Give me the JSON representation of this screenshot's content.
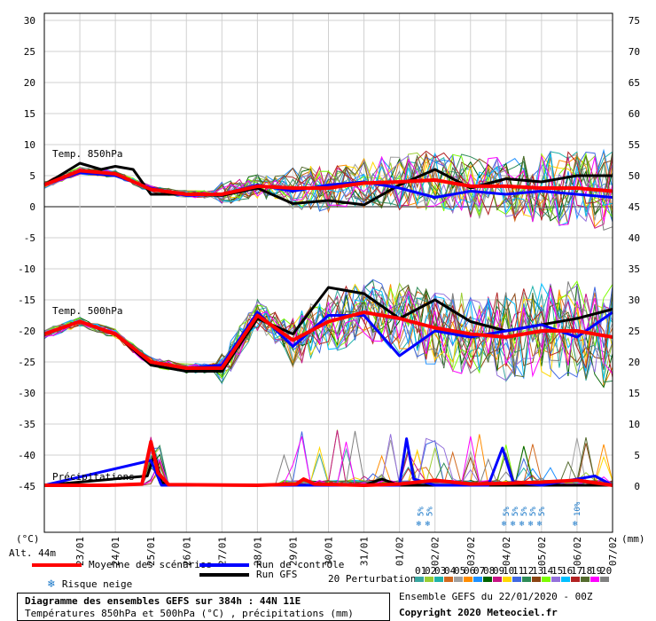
{
  "chart_data": {
    "type": "line",
    "days": [
      "23/01",
      "24/01",
      "25/01",
      "26/01",
      "27/01",
      "28/01",
      "29/01",
      "30/01",
      "31/01",
      "01/02",
      "02/02",
      "03/02",
      "04/02",
      "05/02",
      "06/02",
      "07/02"
    ],
    "left_axis_ticks": [
      30,
      25,
      20,
      15,
      10,
      5,
      0,
      -5,
      -10,
      -15,
      -20,
      -25,
      -30,
      -35,
      -40,
      -45
    ],
    "right_axis_ticks": [
      75,
      70,
      65,
      60,
      55,
      50,
      45,
      40,
      35,
      30,
      25,
      20,
      15,
      10,
      5,
      0
    ],
    "left_axis_unit": "(°C)",
    "right_axis_unit": "(mm)",
    "altitude_label": "Alt. 44m",
    "label_t850": "Temp. 850hPa",
    "label_t500": "Temp. 500hPa",
    "label_precip": "Précipitations",
    "snow_risk": [
      {
        "day": 10.6,
        "label": "5%"
      },
      {
        "day": 10.85,
        "label": "5%"
      },
      {
        "day": 13.0,
        "label": "5%"
      },
      {
        "day": 13.25,
        "label": "5%"
      },
      {
        "day": 13.5,
        "label": "5%"
      },
      {
        "day": 13.75,
        "label": "5%"
      },
      {
        "day": 14.0,
        "label": "5%"
      },
      {
        "day": 15.0,
        "label": "10%"
      }
    ],
    "series": [
      {
        "name": "Moyenne des scénarios",
        "color": "#ff0000",
        "t850": [
          [
            0,
            3.5
          ],
          [
            1,
            5.8
          ],
          [
            2,
            5.3
          ],
          [
            3,
            2.8
          ],
          [
            4,
            2.0
          ],
          [
            5,
            2.0
          ],
          [
            6,
            3.3
          ],
          [
            7,
            3.0
          ],
          [
            8,
            3.0
          ],
          [
            9,
            3.8
          ],
          [
            10,
            4.0
          ],
          [
            11,
            4.3
          ],
          [
            12,
            3.3
          ],
          [
            13,
            3.3
          ],
          [
            14,
            3.0
          ],
          [
            15,
            3.0
          ],
          [
            16,
            2.5
          ]
        ],
        "t500": [
          [
            0,
            -20.5
          ],
          [
            1,
            -18.5
          ],
          [
            2,
            -20.5
          ],
          [
            3,
            -25.0
          ],
          [
            4,
            -26.0
          ],
          [
            5,
            -26.0
          ],
          [
            6,
            -17.5
          ],
          [
            7,
            -21.5
          ],
          [
            8,
            -18.5
          ],
          [
            9,
            -17.0
          ],
          [
            10,
            -18.0
          ],
          [
            11,
            -19.5
          ],
          [
            12,
            -20.5
          ],
          [
            13,
            -21.0
          ],
          [
            14,
            -20.0
          ],
          [
            15,
            -20.0
          ],
          [
            16,
            -21.0
          ]
        ],
        "precip": [
          [
            0,
            0
          ],
          [
            1.8,
            0
          ],
          [
            2.75,
            0.2
          ],
          [
            3.0,
            7.0
          ],
          [
            3.2,
            2.0
          ],
          [
            3.5,
            0.1
          ],
          [
            6,
            0
          ],
          [
            7.1,
            0.2
          ],
          [
            7.3,
            1.0
          ],
          [
            7.6,
            0.2
          ],
          [
            9,
            0
          ],
          [
            10,
            0.2
          ],
          [
            11,
            0.8
          ],
          [
            12,
            0.2
          ],
          [
            13,
            0.3
          ],
          [
            14,
            0.5
          ],
          [
            15,
            0.8
          ],
          [
            16,
            0
          ]
        ]
      },
      {
        "name": "Run de contrôle",
        "color": "#0000ff",
        "t850": [
          [
            0,
            3.5
          ],
          [
            1,
            5.5
          ],
          [
            2,
            5.0
          ],
          [
            3,
            3.0
          ],
          [
            4,
            1.8
          ],
          [
            5,
            2.0
          ],
          [
            6,
            3.5
          ],
          [
            7,
            2.5
          ],
          [
            8,
            3.5
          ],
          [
            9,
            4.0
          ],
          [
            10,
            3.0
          ],
          [
            11,
            1.5
          ],
          [
            12,
            2.5
          ],
          [
            13,
            2.0
          ],
          [
            14,
            2.5
          ],
          [
            15,
            2.0
          ],
          [
            16,
            1.5
          ]
        ],
        "t500": [
          [
            0,
            -20.5
          ],
          [
            1,
            -18.5
          ],
          [
            2,
            -20.5
          ],
          [
            3,
            -25.0
          ],
          [
            4,
            -26.0
          ],
          [
            5,
            -25.5
          ],
          [
            6,
            -17.0
          ],
          [
            7,
            -22.5
          ],
          [
            8,
            -17.5
          ],
          [
            9,
            -17.5
          ],
          [
            10,
            -24.0
          ],
          [
            11,
            -20.0
          ],
          [
            12,
            -21.0
          ],
          [
            13,
            -20.0
          ],
          [
            14,
            -19.0
          ],
          [
            15,
            -21.0
          ],
          [
            16,
            -17.0
          ]
        ],
        "precip": [
          [
            0,
            0
          ],
          [
            3.0,
            4.0
          ],
          [
            3.3,
            0
          ],
          [
            10.0,
            0
          ],
          [
            10.2,
            7.5
          ],
          [
            10.4,
            1.0
          ],
          [
            11,
            0
          ],
          [
            12.5,
            0
          ],
          [
            12.9,
            6.0
          ],
          [
            13.2,
            0.5
          ],
          [
            14,
            0
          ],
          [
            15.5,
            1.5
          ],
          [
            16,
            0
          ]
        ]
      },
      {
        "name": "Run GFS",
        "color": "#000000",
        "t850": [
          [
            0,
            3.5
          ],
          [
            1,
            7.0
          ],
          [
            1.6,
            6.0
          ],
          [
            2,
            6.5
          ],
          [
            2.5,
            6.0
          ],
          [
            3,
            2.0
          ],
          [
            4,
            2.0
          ],
          [
            5,
            1.8
          ],
          [
            6,
            3.0
          ],
          [
            7,
            0.5
          ],
          [
            8,
            1.0
          ],
          [
            9,
            0.3
          ],
          [
            10,
            3.5
          ],
          [
            11,
            6.0
          ],
          [
            12,
            3.0
          ],
          [
            13,
            4.5
          ],
          [
            14,
            4.0
          ],
          [
            15,
            5.0
          ],
          [
            16,
            5.0
          ]
        ],
        "t500": [
          [
            0,
            -20.5
          ],
          [
            1,
            -18.5
          ],
          [
            2,
            -20.5
          ],
          [
            3,
            -25.5
          ],
          [
            4,
            -26.5
          ],
          [
            5,
            -26.5
          ],
          [
            6,
            -18.0
          ],
          [
            7,
            -20.5
          ],
          [
            8,
            -13.0
          ],
          [
            9,
            -14.0
          ],
          [
            10,
            -18.0
          ],
          [
            11,
            -15.0
          ],
          [
            12,
            -18.5
          ],
          [
            13,
            -20.0
          ],
          [
            14,
            -19.0
          ],
          [
            15,
            -18.0
          ],
          [
            16,
            -16.5
          ]
        ],
        "precip": [
          [
            0,
            0
          ],
          [
            2.9,
            1.5
          ],
          [
            3.1,
            5.0
          ],
          [
            3.3,
            0.5
          ],
          [
            3.5,
            0
          ],
          [
            9,
            0
          ],
          [
            9.5,
            1.0
          ],
          [
            10,
            0
          ],
          [
            16,
            0
          ]
        ]
      }
    ],
    "perturbation_colors": [
      "#3aa7a0",
      "#9acd32",
      "#20b2aa",
      "#d2691e",
      "#a0a0a0",
      "#ff8c00",
      "#1e90ff",
      "#006400",
      "#c71585",
      "#ffd700",
      "#4169e1",
      "#2e8b57",
      "#8b4513",
      "#7cfc00",
      "#9370db",
      "#00bfff",
      "#b22222",
      "#556b2f",
      "#ff00ff",
      "#808080"
    ],
    "perturbation_labels": [
      "01",
      "02",
      "03",
      "04",
      "05",
      "06",
      "07",
      "08",
      "09",
      "10",
      "11",
      "12",
      "13",
      "14",
      "15",
      "16",
      "17",
      "18",
      "19",
      "20"
    ]
  },
  "legend": {
    "mean_label": "Moyenne des scénarios",
    "control_label": "Run de contrôle",
    "gfs_label": "Run GFS",
    "snow_label": "Risque neige",
    "perturbations_label": "20 Perturbations"
  },
  "footer": {
    "title": "Diagramme des ensembles GEFS sur 384h : 44N 11E",
    "subtitle": "Températures 850hPa et 500hPa (°C) , précipitations (mm)",
    "run_info": "Ensemble GEFS du 22/01/2020 - 00Z",
    "copyright": "Copyright 2020 Meteociel.fr"
  },
  "colors": {
    "mean": "#ff0000",
    "control": "#0000ff",
    "gfs": "#000000",
    "snow": "#1a78c8"
  }
}
